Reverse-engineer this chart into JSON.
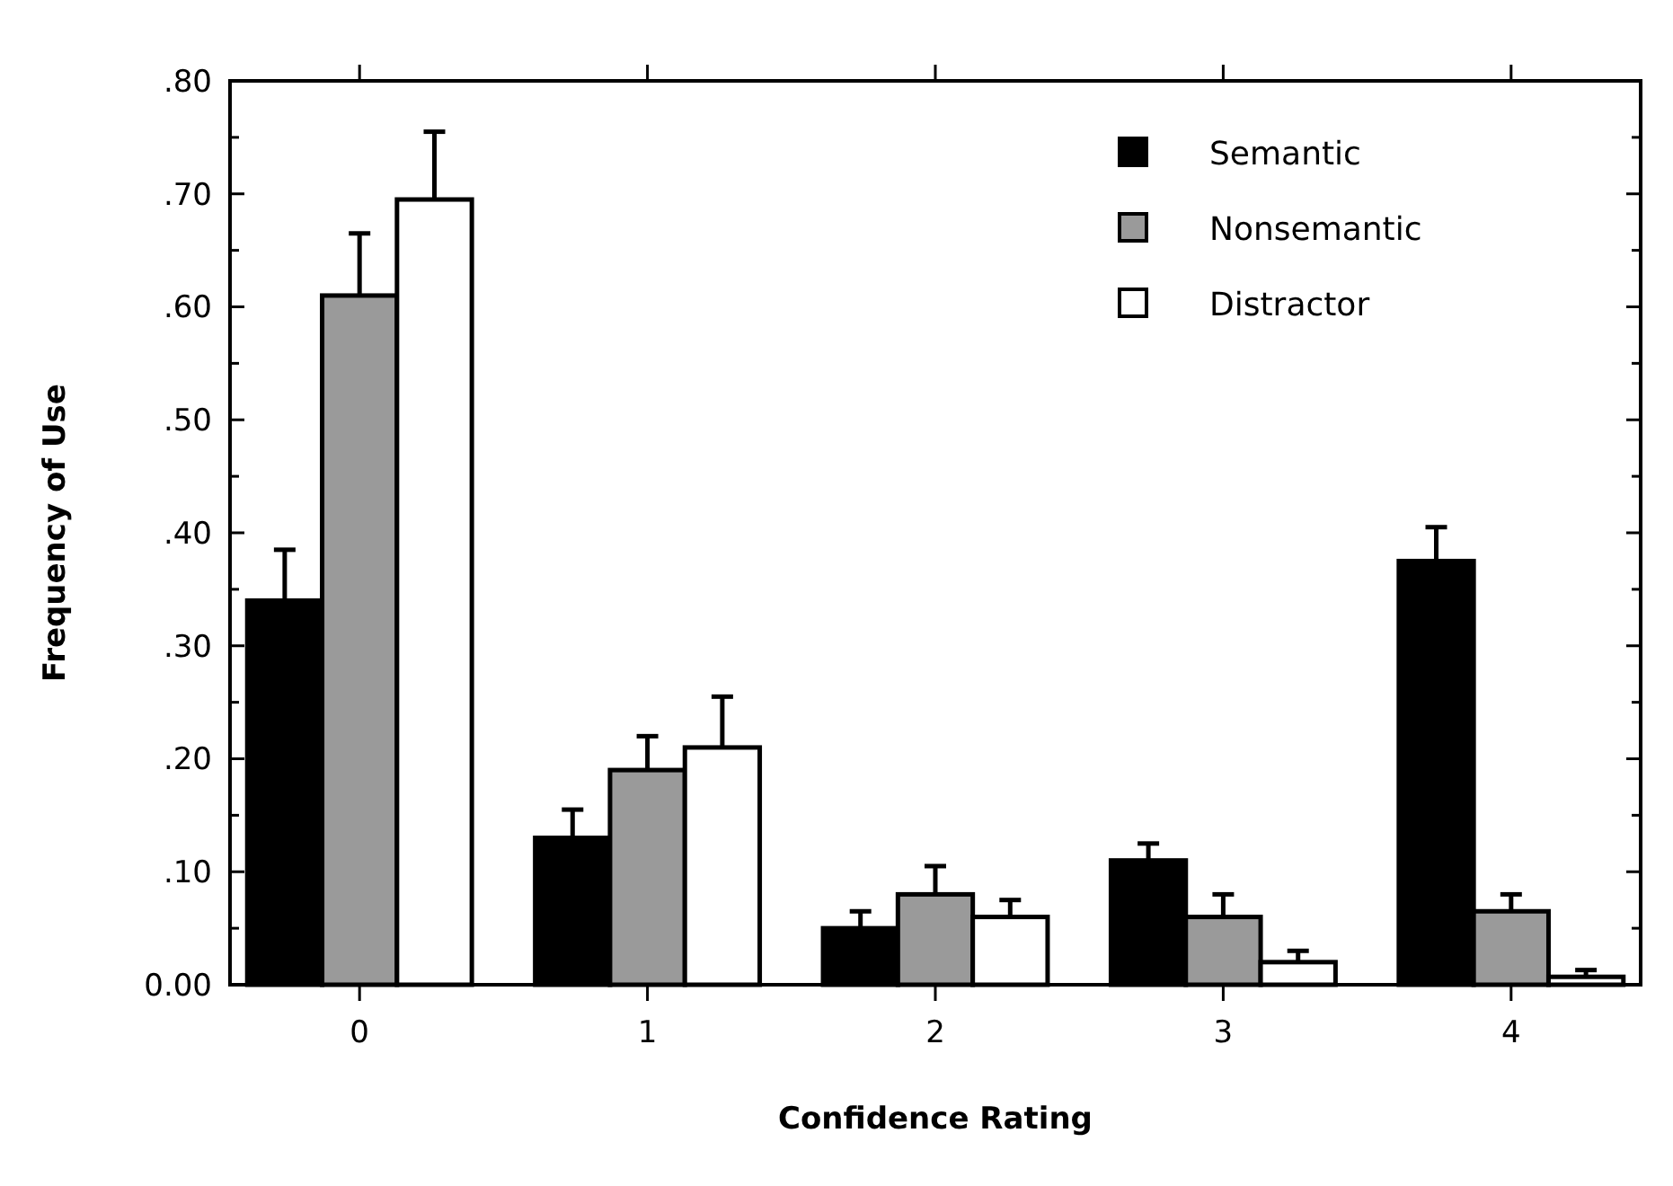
{
  "chart_data": {
    "type": "bar",
    "xlabel": "Confidence Rating",
    "ylabel": "Frequency of Use",
    "categories": [
      "0",
      "1",
      "2",
      "3",
      "4"
    ],
    "series": [
      {
        "name": "Semantic",
        "color": "#000000",
        "values": [
          0.34,
          0.13,
          0.05,
          0.11,
          0.375
        ],
        "errors": [
          [
            0.34,
            0.385
          ],
          [
            0.13,
            0.155
          ],
          [
            0.05,
            0.065
          ],
          [
            0.11,
            0.125
          ],
          [
            0.375,
            0.405
          ]
        ]
      },
      {
        "name": "Nonsemantic",
        "color": "#9a9a9a",
        "values": [
          0.61,
          0.19,
          0.08,
          0.06,
          0.065
        ],
        "errors": [
          [
            0.61,
            0.665
          ],
          [
            0.19,
            0.22
          ],
          [
            0.08,
            0.105
          ],
          [
            0.06,
            0.08
          ],
          [
            0.065,
            0.08
          ]
        ]
      },
      {
        "name": "Distractor",
        "color": "#ffffff",
        "values": [
          0.695,
          0.21,
          0.06,
          0.02,
          0.007
        ],
        "errors": [
          [
            0.695,
            0.755
          ],
          [
            0.21,
            0.255
          ],
          [
            0.06,
            0.075
          ],
          [
            0.02,
            0.03
          ],
          [
            0.007,
            0.013
          ]
        ]
      }
    ],
    "ylim": [
      0,
      0.8
    ],
    "yticks": [
      {
        "value": 0,
        "label": "0.00"
      },
      {
        "value": 0.05,
        "label": null
      },
      {
        "value": 0.1,
        "label": ".10"
      },
      {
        "value": 0.15,
        "label": null
      },
      {
        "value": 0.2,
        "label": ".20"
      },
      {
        "value": 0.25,
        "label": null
      },
      {
        "value": 0.3,
        "label": ".30"
      },
      {
        "value": 0.35,
        "label": null
      },
      {
        "value": 0.4,
        "label": ".40"
      },
      {
        "value": 0.45,
        "label": null
      },
      {
        "value": 0.5,
        "label": ".50"
      },
      {
        "value": 0.55,
        "label": null
      },
      {
        "value": 0.6,
        "label": ".60"
      },
      {
        "value": 0.65,
        "label": null
      },
      {
        "value": 0.7,
        "label": ".70"
      },
      {
        "value": 0.75,
        "label": null
      },
      {
        "value": 0.8,
        "label": ".80"
      }
    ],
    "grid": false,
    "legend": "top right"
  }
}
